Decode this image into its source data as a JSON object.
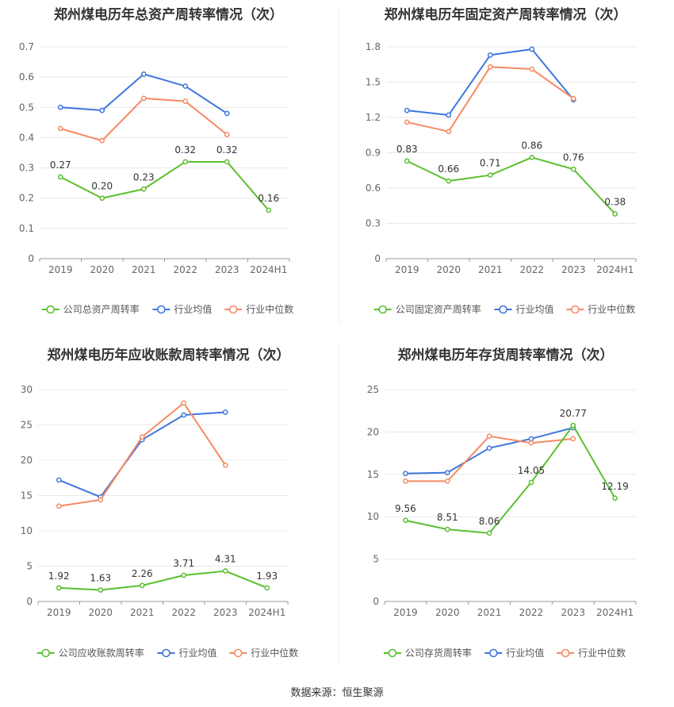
{
  "source": "数据来源：恒生聚源",
  "colors": {
    "company": "#5ac02f",
    "average": "#3f76dd",
    "median": "#f58a63",
    "grid": "#e8e8e8"
  },
  "chart_data": [
    {
      "type": "line",
      "title": "郑州煤电历年总资产周转率情况（次）",
      "categories": [
        "2019",
        "2020",
        "2021",
        "2022",
        "2023",
        "2024H1"
      ],
      "ylim": [
        0,
        0.7
      ],
      "yticks": [
        "0",
        "0.1",
        "0.2",
        "0.3",
        "0.4",
        "0.5",
        "0.6",
        "0.7"
      ],
      "series": [
        {
          "name": "公司总资产周转率",
          "values": [
            0.27,
            0.2,
            0.23,
            0.32,
            0.32,
            0.16
          ],
          "labels": [
            "0.27",
            "0.20",
            "0.23",
            "0.32",
            "0.32",
            "0.16"
          ]
        },
        {
          "name": "行业均值",
          "values": [
            0.5,
            0.49,
            0.61,
            0.57,
            0.48,
            null
          ]
        },
        {
          "name": "行业中位数",
          "values": [
            0.43,
            0.39,
            0.53,
            0.52,
            0.41,
            null
          ]
        }
      ]
    },
    {
      "type": "line",
      "title": "郑州煤电历年固定资产周转率情况（次）",
      "categories": [
        "2019",
        "2020",
        "2021",
        "2022",
        "2023",
        "2024H1"
      ],
      "ylim": [
        0,
        1.8
      ],
      "yticks": [
        "0",
        "0.3",
        "0.6",
        "0.9",
        "1.2",
        "1.5",
        "1.8"
      ],
      "series": [
        {
          "name": "公司固定资产周转率",
          "values": [
            0.83,
            0.66,
            0.71,
            0.86,
            0.76,
            0.38
          ],
          "labels": [
            "0.83",
            "0.66",
            "0.71",
            "0.86",
            "0.76",
            "0.38"
          ]
        },
        {
          "name": "行业均值",
          "values": [
            1.26,
            1.22,
            1.73,
            1.78,
            1.35,
            null
          ]
        },
        {
          "name": "行业中位数",
          "values": [
            1.16,
            1.08,
            1.63,
            1.61,
            1.36,
            null
          ]
        }
      ]
    },
    {
      "type": "line",
      "title": "郑州煤电历年应收账款周转率情况（次）",
      "categories": [
        "2019",
        "2020",
        "2021",
        "2022",
        "2023",
        "2024H1"
      ],
      "ylim": [
        0,
        30
      ],
      "yticks": [
        "0",
        "5",
        "10",
        "15",
        "20",
        "25",
        "30"
      ],
      "series": [
        {
          "name": "公司应收账款周转率",
          "values": [
            1.92,
            1.63,
            2.26,
            3.71,
            4.31,
            1.93
          ],
          "labels": [
            "1.92",
            "1.63",
            "2.26",
            "3.71",
            "4.31",
            "1.93"
          ]
        },
        {
          "name": "行业均值",
          "values": [
            17.2,
            14.8,
            22.9,
            26.4,
            26.8,
            null
          ]
        },
        {
          "name": "行业中位数",
          "values": [
            13.5,
            14.4,
            23.3,
            28.1,
            19.3,
            null
          ]
        }
      ]
    },
    {
      "type": "line",
      "title": "郑州煤电历年存货周转率情况（次）",
      "categories": [
        "2019",
        "2020",
        "2021",
        "2022",
        "2023",
        "2024H1"
      ],
      "ylim": [
        0,
        25
      ],
      "yticks": [
        "0",
        "5",
        "10",
        "15",
        "20",
        "25"
      ],
      "series": [
        {
          "name": "公司存货周转率",
          "values": [
            9.56,
            8.51,
            8.06,
            14.05,
            20.77,
            12.19
          ],
          "labels": [
            "9.56",
            "8.51",
            "8.06",
            "14.05",
            "20.77",
            "12.19"
          ]
        },
        {
          "name": "行业均值",
          "values": [
            15.1,
            15.2,
            18.1,
            19.2,
            20.5,
            null
          ]
        },
        {
          "name": "行业中位数",
          "values": [
            14.2,
            14.2,
            19.5,
            18.7,
            19.2,
            null
          ]
        }
      ]
    }
  ]
}
